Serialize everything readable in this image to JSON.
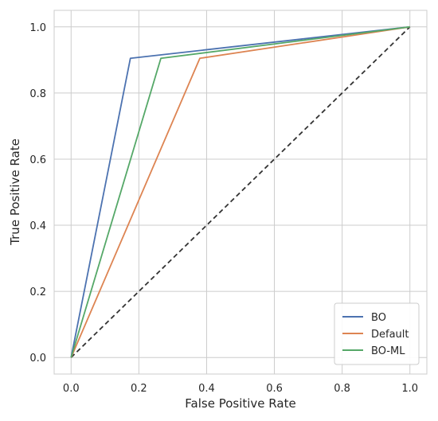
{
  "chart_data": {
    "type": "line",
    "title": "",
    "xlabel": "False Positive Rate",
    "ylabel": "True Positive Rate",
    "xlim": [
      -0.05,
      1.05
    ],
    "ylim": [
      -0.05,
      1.05
    ],
    "x_ticks": [
      "0.0",
      "0.2",
      "0.4",
      "0.6",
      "0.8",
      "1.0"
    ],
    "y_ticks": [
      "0.0",
      "0.2",
      "0.4",
      "0.6",
      "0.8",
      "1.0"
    ],
    "grid": true,
    "legend_position": "bottom-right",
    "series": [
      {
        "name": "BO",
        "color": "#4c72b0",
        "x": [
          0.0,
          0.175,
          1.0
        ],
        "y": [
          0.0,
          0.905,
          1.0
        ]
      },
      {
        "name": "Default",
        "color": "#dd8452",
        "x": [
          0.0,
          0.38,
          1.0
        ],
        "y": [
          0.0,
          0.905,
          1.0
        ]
      },
      {
        "name": "BO-ML",
        "color": "#55a868",
        "x": [
          0.0,
          0.265,
          1.0
        ],
        "y": [
          0.0,
          0.905,
          1.0
        ]
      }
    ],
    "reference_line": {
      "x": [
        0.0,
        1.0
      ],
      "y": [
        0.0,
        1.0
      ],
      "color": "#333333",
      "style": "dashed"
    }
  }
}
